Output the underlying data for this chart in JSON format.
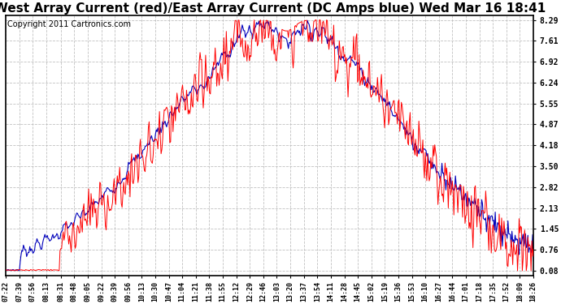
{
  "title": "West Array Current (red)/East Array Current (DC Amps blue) Wed Mar 16 18:41",
  "copyright": "Copyright 2011 Cartronics.com",
  "yticks": [
    0.08,
    0.76,
    1.45,
    2.13,
    2.82,
    3.5,
    4.18,
    4.87,
    5.55,
    6.24,
    6.92,
    7.61,
    8.29
  ],
  "ymin": 0.08,
  "ymax": 8.29,
  "red_color": "#ff0000",
  "blue_color": "#0000bb",
  "bg_color": "#ffffff",
  "grid_color": "#bbbbbb",
  "title_fontsize": 11,
  "copyright_fontsize": 7,
  "xtick_fontsize": 6,
  "ytick_fontsize": 7,
  "xtick_labels": [
    "07:22",
    "07:39",
    "07:56",
    "08:13",
    "08:31",
    "08:48",
    "09:05",
    "09:22",
    "09:39",
    "09:56",
    "10:13",
    "10:30",
    "10:47",
    "11:04",
    "11:21",
    "11:38",
    "11:55",
    "12:12",
    "12:29",
    "12:46",
    "13:03",
    "13:20",
    "13:37",
    "13:54",
    "14:11",
    "14:28",
    "14:45",
    "15:02",
    "15:19",
    "15:36",
    "15:53",
    "16:10",
    "16:27",
    "16:44",
    "17:01",
    "17:18",
    "17:35",
    "17:52",
    "18:09",
    "18:26"
  ]
}
